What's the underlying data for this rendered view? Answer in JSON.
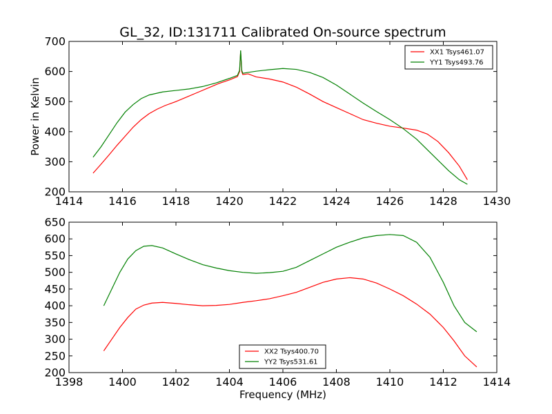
{
  "figure": {
    "title": "GL_32, ID:131711 Calibrated On-source spectrum",
    "ylabel": "Power in Kelvin",
    "xlabel": "Frequency (MHz)"
  },
  "chart_data": [
    {
      "type": "line",
      "title": "GL_32, ID:131711 Calibrated On-source spectrum",
      "xlabel": "",
      "ylabel": "Power in Kelvin",
      "xlim": [
        1414,
        1430
      ],
      "ylim": [
        200,
        700
      ],
      "xticks": [
        "1414",
        "1416",
        "1418",
        "1420",
        "1422",
        "1424",
        "1426",
        "1428",
        "1430"
      ],
      "yticks": [
        "200",
        "300",
        "400",
        "500",
        "600",
        "700"
      ],
      "grid": false,
      "legend": "top-right",
      "series": [
        {
          "name": "XX1 Tsys461.07",
          "color": "#ff0000",
          "x": [
            1414.9,
            1415.2,
            1415.5,
            1415.8,
            1416.1,
            1416.4,
            1416.7,
            1417.0,
            1417.3,
            1417.6,
            1418.0,
            1418.4,
            1418.8,
            1419.2,
            1419.6,
            1420.0,
            1420.3,
            1420.38,
            1420.42,
            1420.46,
            1420.5,
            1420.7,
            1421.0,
            1421.5,
            1422.0,
            1422.5,
            1423.0,
            1423.5,
            1424.0,
            1424.5,
            1425.0,
            1425.5,
            1426.0,
            1426.5,
            1427.0,
            1427.4,
            1427.8,
            1428.2,
            1428.6,
            1428.9
          ],
          "y": [
            262,
            292,
            323,
            355,
            385,
            415,
            440,
            460,
            475,
            487,
            500,
            515,
            530,
            545,
            560,
            572,
            583,
            600,
            668,
            600,
            590,
            592,
            582,
            575,
            565,
            548,
            525,
            500,
            480,
            460,
            440,
            428,
            418,
            412,
            405,
            392,
            367,
            330,
            285,
            240
          ]
        },
        {
          "name": "YY1 Tsys493.76",
          "color": "#008000",
          "x": [
            1414.9,
            1415.2,
            1415.5,
            1415.8,
            1416.1,
            1416.4,
            1416.7,
            1417.0,
            1417.5,
            1418.0,
            1418.5,
            1419.0,
            1419.5,
            1420.0,
            1420.3,
            1420.38,
            1420.42,
            1420.46,
            1420.5,
            1420.7,
            1421.0,
            1421.5,
            1422.0,
            1422.5,
            1423.0,
            1423.5,
            1424.0,
            1424.5,
            1425.0,
            1425.5,
            1426.0,
            1426.5,
            1427.0,
            1427.4,
            1427.8,
            1428.2,
            1428.6,
            1428.9
          ],
          "y": [
            315,
            350,
            390,
            430,
            465,
            490,
            510,
            522,
            532,
            537,
            542,
            550,
            562,
            577,
            587,
            604,
            670,
            604,
            594,
            597,
            601,
            606,
            610,
            607,
            597,
            580,
            555,
            525,
            495,
            467,
            440,
            410,
            375,
            340,
            305,
            270,
            240,
            225
          ]
        }
      ]
    },
    {
      "type": "line",
      "title": "",
      "xlabel": "Frequency (MHz)",
      "ylabel": "",
      "xlim": [
        1398,
        1414
      ],
      "ylim": [
        200,
        650
      ],
      "xticks": [
        "1398",
        "1400",
        "1402",
        "1404",
        "1406",
        "1408",
        "1410",
        "1412",
        "1414"
      ],
      "yticks": [
        "200",
        "250",
        "300",
        "350",
        "400",
        "450",
        "500",
        "550",
        "600",
        "650"
      ],
      "grid": false,
      "legend": "bottom-center",
      "series": [
        {
          "name": "XX2 Tsys400.70",
          "color": "#ff0000",
          "x": [
            1399.3,
            1399.6,
            1399.9,
            1400.2,
            1400.5,
            1400.8,
            1401.1,
            1401.5,
            1402.0,
            1402.5,
            1403.0,
            1403.5,
            1404.0,
            1404.5,
            1405.0,
            1405.5,
            1406.0,
            1406.5,
            1407.0,
            1407.5,
            1408.0,
            1408.5,
            1409.0,
            1409.5,
            1410.0,
            1410.5,
            1411.0,
            1411.5,
            1412.0,
            1412.4,
            1412.8,
            1413.25
          ],
          "y": [
            265,
            300,
            335,
            365,
            390,
            402,
            408,
            410,
            407,
            403,
            400,
            401,
            404,
            410,
            415,
            421,
            430,
            440,
            455,
            470,
            480,
            484,
            480,
            468,
            450,
            430,
            405,
            375,
            335,
            295,
            250,
            217
          ]
        },
        {
          "name": "YY2 Tsys531.61",
          "color": "#008000",
          "x": [
            1399.3,
            1399.6,
            1399.9,
            1400.2,
            1400.5,
            1400.8,
            1401.1,
            1401.5,
            1402.0,
            1402.5,
            1403.0,
            1403.5,
            1404.0,
            1404.5,
            1405.0,
            1405.5,
            1406.0,
            1406.5,
            1407.0,
            1407.5,
            1408.0,
            1408.5,
            1409.0,
            1409.5,
            1410.0,
            1410.5,
            1411.0,
            1411.5,
            1412.0,
            1412.4,
            1412.8,
            1413.25
          ],
          "y": [
            400,
            450,
            500,
            540,
            565,
            578,
            580,
            573,
            555,
            538,
            523,
            513,
            505,
            500,
            497,
            499,
            503,
            515,
            535,
            555,
            575,
            590,
            603,
            610,
            613,
            610,
            590,
            545,
            470,
            400,
            350,
            322
          ]
        }
      ]
    }
  ]
}
